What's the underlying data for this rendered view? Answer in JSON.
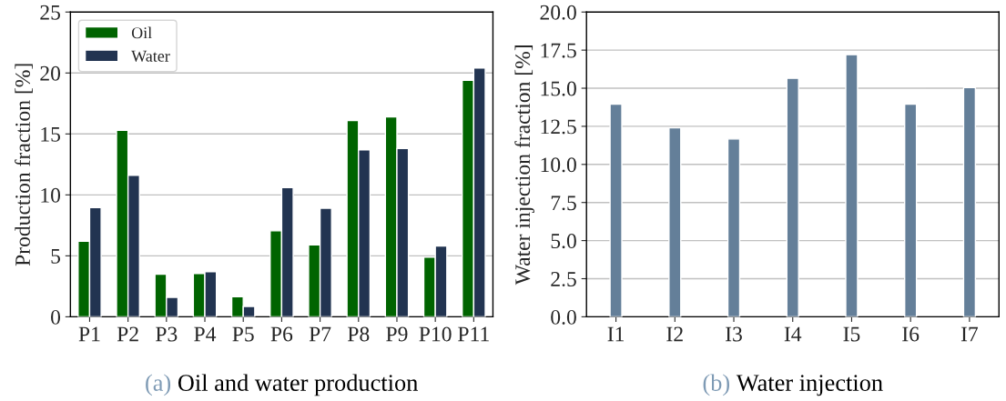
{
  "chart_data": [
    {
      "type": "bar",
      "ylabel": "Production fraction [%]",
      "categories": [
        "P1",
        "P2",
        "P3",
        "P4",
        "P5",
        "P6",
        "P7",
        "P8",
        "P9",
        "P10",
        "P11"
      ],
      "series": [
        {
          "name": "Oil",
          "color": "#006400",
          "values": [
            6.2,
            15.3,
            3.5,
            3.55,
            1.65,
            7.05,
            5.9,
            16.1,
            16.4,
            4.9,
            19.4
          ]
        },
        {
          "name": "Water",
          "color": "#223451",
          "values": [
            8.95,
            11.6,
            1.6,
            3.7,
            0.85,
            10.6,
            8.9,
            13.7,
            13.8,
            5.8,
            20.4
          ]
        }
      ],
      "ylim": [
        0,
        25
      ],
      "yticks": [
        0,
        5,
        10,
        15,
        20,
        25
      ],
      "grid": "y",
      "legend": "top left",
      "annotations": [
        "(a) Oil and water production"
      ]
    },
    {
      "type": "bar",
      "ylabel": "Water injection fraction [%]",
      "categories": [
        "I1",
        "I2",
        "I3",
        "I4",
        "I5",
        "I6",
        "I7"
      ],
      "series": [
        {
          "color": "#647f99",
          "values": [
            13.95,
            12.4,
            11.67,
            15.65,
            17.2,
            13.95,
            15.04
          ]
        }
      ],
      "ylim": [
        0,
        20
      ],
      "yticks": [
        {
          "value": 0,
          "label": "0.0"
        },
        {
          "value": 2.5,
          "label": "2.5"
        },
        {
          "value": 5,
          "label": "5.0"
        },
        {
          "value": 7.5,
          "label": "7.5"
        },
        {
          "value": 10,
          "label": "10.0"
        },
        {
          "value": 12.5,
          "label": "12.5"
        },
        {
          "value": 15,
          "label": "15.0"
        },
        {
          "value": 17.5,
          "label": "17.5"
        },
        {
          "value": 20,
          "label": "20.0"
        }
      ],
      "grid": "y",
      "annotations": [
        "(b) Water injection"
      ]
    }
  ]
}
